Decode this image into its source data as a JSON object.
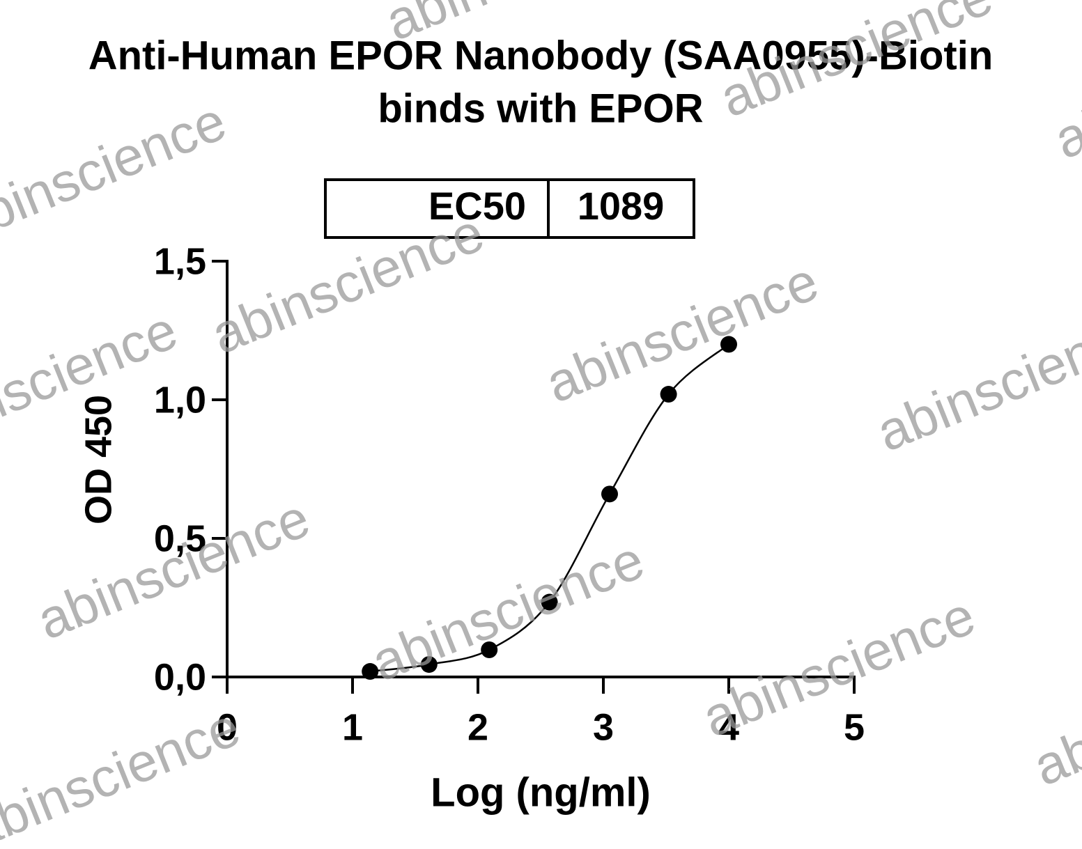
{
  "chart_data": {
    "type": "scatter",
    "title": [
      "Anti-Human EPOR Nanobody (SAA0955)-Biotin",
      "binds with EPOR"
    ],
    "ec50_label": "EC50",
    "ec50_value": 1089,
    "x_label": "Log (ng/ml)",
    "y_label": "OD 450",
    "watermark": "abinscience",
    "x": [
      1.14,
      1.61,
      2.09,
      2.57,
      3.05,
      3.52,
      4.0
    ],
    "series": [
      {
        "color": "#000000",
        "values": [
          0.02,
          0.045,
          0.098,
          0.27,
          0.66,
          1.02,
          1.2
        ]
      }
    ],
    "xlim": [
      0,
      5
    ],
    "xticks": [
      0,
      1,
      2,
      3,
      4,
      5
    ],
    "ylim": [
      0,
      1.5
    ],
    "yticks": [
      {
        "value": 0,
        "label": "0,0"
      },
      {
        "value": 0.5,
        "label": "0,5"
      },
      {
        "value": 1.0,
        "label": "1,0"
      },
      {
        "value": 1.5,
        "label": "1,5"
      }
    ],
    "fit_line": true
  }
}
